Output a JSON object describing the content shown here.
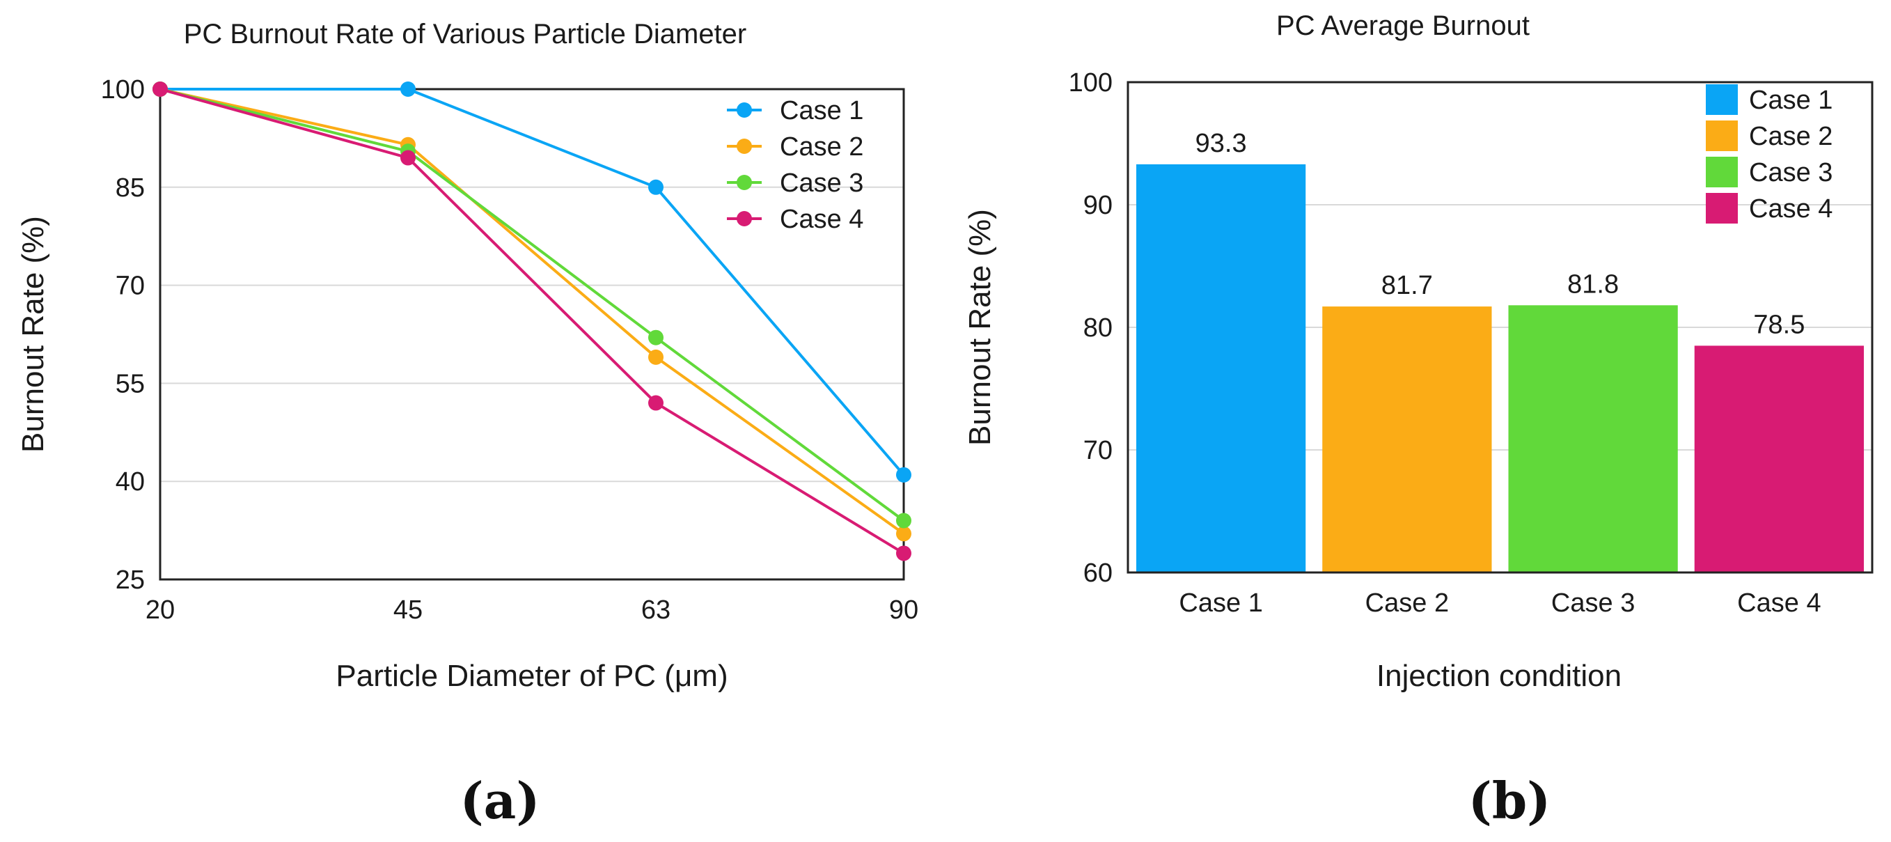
{
  "chart_data": [
    {
      "type": "line",
      "title": "PC Burnout Rate of Various Particle Diameter",
      "xlabel": "Particle Diameter of PC (μm)",
      "ylabel": "Burnout Rate (%)",
      "categories": [
        "20",
        "45",
        "63",
        "90"
      ],
      "yticks": [
        "25",
        "40",
        "55",
        "70",
        "85",
        "100"
      ],
      "ylim": [
        25,
        100
      ],
      "grid": true,
      "legend_position": "top-right",
      "series": [
        {
          "name": "Case 1",
          "color": "#0aa5f5",
          "values": [
            100,
            100,
            85,
            41
          ]
        },
        {
          "name": "Case 2",
          "color": "#fbac16",
          "values": [
            100,
            91.5,
            59,
            32
          ]
        },
        {
          "name": "Case 3",
          "color": "#61d93a",
          "values": [
            100,
            90.5,
            62,
            34
          ]
        },
        {
          "name": "Case 4",
          "color": "#d81b73",
          "values": [
            100,
            89.5,
            52,
            29
          ]
        }
      ],
      "panel_label": "(a)"
    },
    {
      "type": "bar",
      "title": "PC Average Burnout",
      "xlabel": "Injection condition",
      "ylabel": "Burnout Rate (%)",
      "categories": [
        "Case 1",
        "Case 2",
        "Case 3",
        "Case 4"
      ],
      "values": [
        93.3,
        81.7,
        81.8,
        78.5
      ],
      "value_labels": [
        "93.3",
        "81.7",
        "81.8",
        "78.5"
      ],
      "colors": [
        "#0aa5f5",
        "#fbac16",
        "#61d93a",
        "#d81b73"
      ],
      "yticks": [
        "60",
        "70",
        "80",
        "90",
        "100"
      ],
      "ylim": [
        60,
        100
      ],
      "grid": true,
      "legend_position": "top-right",
      "legend": [
        "Case 1",
        "Case 2",
        "Case 3",
        "Case 4"
      ],
      "panel_label": "(b)"
    }
  ]
}
